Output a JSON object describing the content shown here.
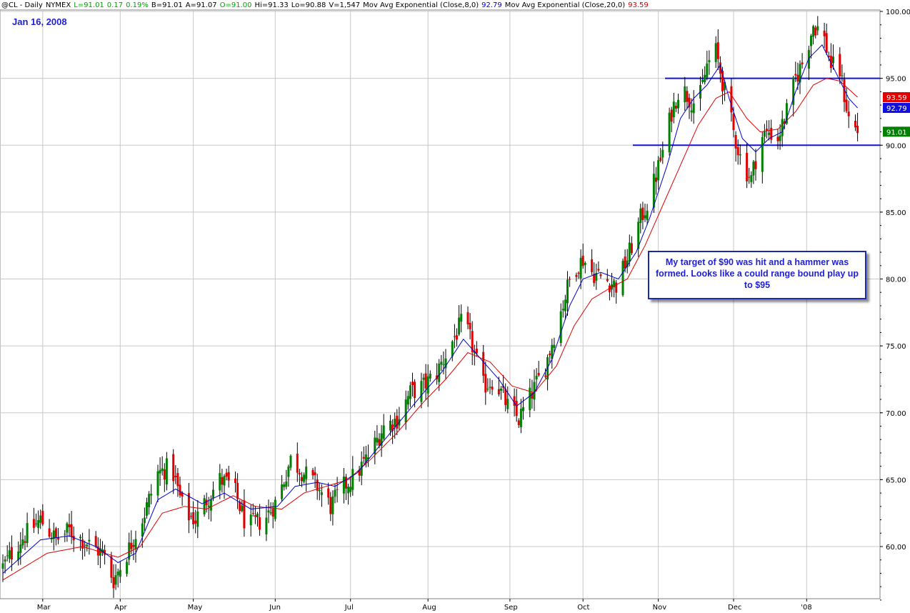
{
  "header": {
    "symbol": "@CL - Daily",
    "exchange": "NYMEX",
    "last": "L=91.01",
    "change": "0.17",
    "change_pct": "0.19%",
    "bid": "B=91.01",
    "ask": "A=91.07",
    "open": "O=91.00",
    "high": "Hi=91.33",
    "low": "Lo=90.88",
    "volume": "V=1,547",
    "ema8_label": "Mov Avg Exponential (Close,8,0)",
    "ema8_value": "92.79",
    "ema20_label": "Mov Avg Exponential (Close,20,0)",
    "ema20_value": "93.59",
    "colors": {
      "symbol": "#000000",
      "last": "#00a000",
      "ema8": "#0000c8",
      "ema20": "#d00000"
    }
  },
  "date_label": "Jan 16, 2008",
  "annotation": "My target of $90 was hit and a hammer was formed. Looks like a could range bound play up to $95",
  "chart_data": {
    "type": "candlestick",
    "y_range": [
      55.5,
      100.5
    ],
    "y_ticks": [
      "60.00",
      "65.00",
      "70.00",
      "75.00",
      "80.00",
      "85.00",
      "90.00",
      "95.00",
      "100.00"
    ],
    "x_ticks": [
      "Mar",
      "Apr",
      "May",
      "Jun",
      "Jul",
      "Aug",
      "Sep",
      "Oct",
      "Nov",
      "Dec",
      "'08"
    ],
    "price_badges": [
      {
        "text": "93.59",
        "value": 93.59,
        "color": "#e00000"
      },
      {
        "text": "92.79",
        "value": 92.79,
        "color": "#1010e0"
      },
      {
        "text": "91.01",
        "value": 91.01,
        "color": "#008000"
      }
    ],
    "horizontal_lines": [
      {
        "value": 95.0,
        "start_month": "Nov",
        "color": "#1010e0"
      },
      {
        "value": 90.0,
        "start_month": "Oct",
        "color": "#1010e0"
      }
    ],
    "up_color": "#008000",
    "down_color": "#e00000",
    "ema8_color": "#0000c8",
    "ema20_color": "#e00000",
    "grid": true,
    "close_path": [
      [
        0,
        58.5
      ],
      [
        8,
        60.5
      ],
      [
        17,
        62.0
      ],
      [
        24,
        60.5
      ],
      [
        30,
        61.2
      ],
      [
        36,
        60.5
      ],
      [
        45,
        59.5
      ],
      [
        50,
        57.5
      ],
      [
        56,
        59.5
      ],
      [
        64,
        62.5
      ],
      [
        70,
        65.5
      ],
      [
        76,
        66.0
      ],
      [
        82,
        62.5
      ],
      [
        87,
        62.0
      ],
      [
        92,
        63.5
      ],
      [
        98,
        65.0
      ],
      [
        104,
        64.5
      ],
      [
        110,
        61.5
      ],
      [
        118,
        62.0
      ],
      [
        124,
        63.5
      ],
      [
        130,
        66.5
      ],
      [
        136,
        65.5
      ],
      [
        142,
        64.5
      ],
      [
        148,
        63.0
      ],
      [
        154,
        64.5
      ],
      [
        160,
        65.5
      ],
      [
        166,
        67.0
      ],
      [
        172,
        69.0
      ],
      [
        178,
        69.5
      ],
      [
        184,
        71.5
      ],
      [
        190,
        72.0
      ],
      [
        196,
        73.0
      ],
      [
        202,
        75.0
      ],
      [
        208,
        77.0
      ],
      [
        212,
        75.0
      ],
      [
        217,
        72.0
      ],
      [
        222,
        72.5
      ],
      [
        228,
        70.5
      ],
      [
        233,
        69.5
      ],
      [
        239,
        71.5
      ],
      [
        245,
        73.5
      ],
      [
        251,
        77.0
      ],
      [
        257,
        80.5
      ],
      [
        262,
        81.5
      ],
      [
        266,
        80.5
      ],
      [
        272,
        80.0
      ],
      [
        277,
        79.5
      ],
      [
        282,
        81.5
      ],
      [
        288,
        84.5
      ],
      [
        292,
        86.0
      ],
      [
        298,
        89.5
      ],
      [
        302,
        92.5
      ],
      [
        306,
        94.5
      ],
      [
        310,
        93.5
      ],
      [
        314,
        93.0
      ],
      [
        318,
        96.0
      ],
      [
        322,
        97.0
      ],
      [
        326,
        94.0
      ],
      [
        330,
        91.0
      ],
      [
        334,
        88.5
      ],
      [
        338,
        87.5
      ],
      [
        342,
        90.5
      ],
      [
        346,
        91.0
      ],
      [
        350,
        90.5
      ],
      [
        354,
        92.5
      ],
      [
        358,
        95.0
      ],
      [
        362,
        96.5
      ],
      [
        366,
        99.0
      ],
      [
        370,
        98.5
      ],
      [
        374,
        96.0
      ],
      [
        378,
        95.5
      ],
      [
        382,
        92.0
      ],
      [
        386,
        91.0
      ]
    ],
    "ema8_path": [
      [
        0,
        58.0
      ],
      [
        17,
        60.5
      ],
      [
        30,
        60.8
      ],
      [
        42,
        60.0
      ],
      [
        52,
        58.8
      ],
      [
        60,
        59.5
      ],
      [
        70,
        63.5
      ],
      [
        78,
        64.3
      ],
      [
        90,
        63.2
      ],
      [
        100,
        64.0
      ],
      [
        112,
        62.8
      ],
      [
        124,
        63.0
      ],
      [
        132,
        64.5
      ],
      [
        142,
        64.8
      ],
      [
        150,
        64.5
      ],
      [
        160,
        65.5
      ],
      [
        170,
        67.5
      ],
      [
        180,
        69.5
      ],
      [
        190,
        71.5
      ],
      [
        198,
        73.0
      ],
      [
        208,
        75.5
      ],
      [
        216,
        74.0
      ],
      [
        224,
        72.5
      ],
      [
        232,
        70.5
      ],
      [
        240,
        71.5
      ],
      [
        248,
        74.0
      ],
      [
        256,
        78.0
      ],
      [
        262,
        80.0
      ],
      [
        270,
        80.5
      ],
      [
        278,
        80.0
      ],
      [
        286,
        82.0
      ],
      [
        292,
        84.5
      ],
      [
        300,
        88.5
      ],
      [
        306,
        92.0
      ],
      [
        312,
        93.5
      ],
      [
        318,
        94.5
      ],
      [
        324,
        96.0
      ],
      [
        328,
        93.5
      ],
      [
        334,
        90.5
      ],
      [
        340,
        89.5
      ],
      [
        346,
        90.5
      ],
      [
        352,
        91.0
      ],
      [
        358,
        94.0
      ],
      [
        364,
        96.5
      ],
      [
        370,
        97.5
      ],
      [
        376,
        95.5
      ],
      [
        382,
        93.5
      ],
      [
        386,
        92.79
      ]
    ],
    "ema20_path": [
      [
        0,
        57.5
      ],
      [
        20,
        59.5
      ],
      [
        36,
        60.0
      ],
      [
        52,
        59.2
      ],
      [
        62,
        60.0
      ],
      [
        72,
        62.5
      ],
      [
        82,
        63.0
      ],
      [
        92,
        62.8
      ],
      [
        104,
        63.8
      ],
      [
        114,
        63.0
      ],
      [
        126,
        62.8
      ],
      [
        136,
        64.0
      ],
      [
        146,
        64.5
      ],
      [
        156,
        65.0
      ],
      [
        166,
        66.5
      ],
      [
        178,
        68.5
      ],
      [
        190,
        70.8
      ],
      [
        200,
        72.5
      ],
      [
        210,
        74.5
      ],
      [
        220,
        73.8
      ],
      [
        230,
        72.0
      ],
      [
        240,
        71.5
      ],
      [
        250,
        73.5
      ],
      [
        258,
        76.5
      ],
      [
        266,
        78.5
      ],
      [
        274,
        79.3
      ],
      [
        282,
        80.0
      ],
      [
        290,
        82.5
      ],
      [
        298,
        85.5
      ],
      [
        306,
        88.5
      ],
      [
        314,
        91.5
      ],
      [
        322,
        93.5
      ],
      [
        328,
        94.0
      ],
      [
        336,
        92.0
      ],
      [
        342,
        91.0
      ],
      [
        350,
        91.2
      ],
      [
        358,
        92.5
      ],
      [
        366,
        94.5
      ],
      [
        372,
        95.0
      ],
      [
        378,
        94.8
      ],
      [
        386,
        93.59
      ]
    ]
  }
}
